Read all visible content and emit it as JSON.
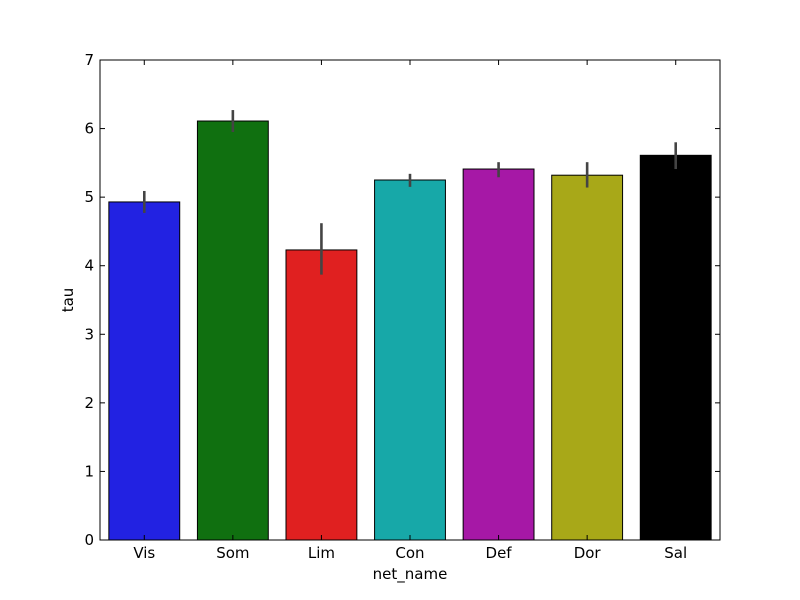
{
  "chart_data": {
    "type": "bar",
    "title": "",
    "xlabel": "net_name",
    "ylabel": "tau",
    "ylim": [
      0,
      7
    ],
    "yticks": [
      0,
      1,
      2,
      3,
      4,
      5,
      6,
      7
    ],
    "grid": false,
    "legend": "none",
    "categories": [
      "Vis",
      "Som",
      "Lim",
      "Con",
      "Def",
      "Dor",
      "Sal"
    ],
    "values": [
      4.93,
      6.11,
      4.23,
      5.25,
      5.41,
      5.32,
      5.61
    ],
    "error_low": [
      4.77,
      5.95,
      3.87,
      5.15,
      5.29,
      5.14,
      5.41
    ],
    "error_high": [
      5.09,
      6.27,
      4.62,
      5.34,
      5.51,
      5.51,
      5.8
    ],
    "colors": [
      "#2222e2",
      "#107010",
      "#e02020",
      "#17a8a8",
      "#a618a6",
      "#a8a818",
      "#000000"
    ],
    "error_color": "#444444"
  }
}
